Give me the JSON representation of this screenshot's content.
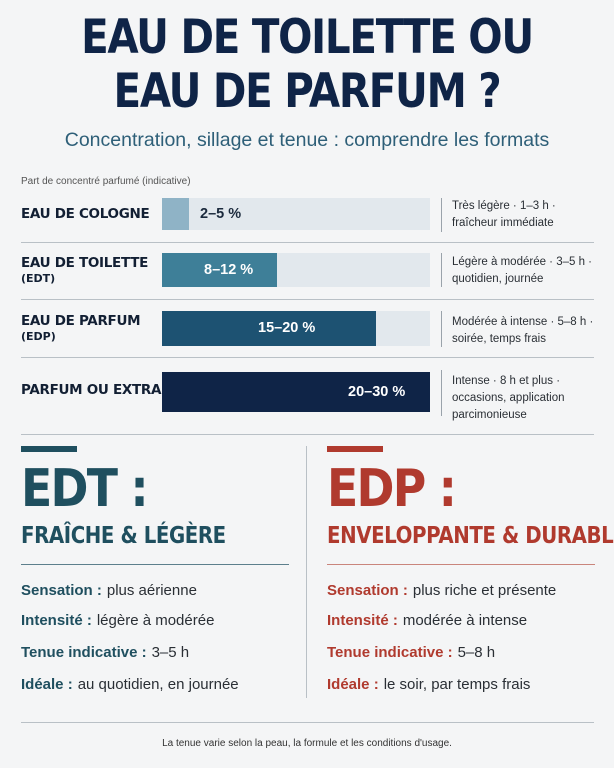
{
  "header": {
    "title_line1": "EAU DE TOILETTE OU",
    "title_line2": "EAU DE PARFUM ?",
    "subtitle": "Concentration, sillage et tenue : comprendre les formats"
  },
  "chart": {
    "caption": "Part de concentré parfumé (indicative)",
    "rows": [
      {
        "label": "EAU DE COLOGNE",
        "sub": "",
        "pct": "2–5 %",
        "level": 0.1,
        "color": "#8fb3c6",
        "note1": "Très légère · 1–3 h ·",
        "note2": "fraîcheur immédiate",
        "note3": ""
      },
      {
        "label": "EAU DE TOILETTE",
        "sub": "(EDT)",
        "pct": "8–12 %",
        "level": 0.43,
        "color": "#3e7f98",
        "note1": "Légère à modérée · 3–5 h ·",
        "note2": "quotidien, journée",
        "note3": ""
      },
      {
        "label": "EAU DE PARFUM",
        "sub": "(EDP)",
        "pct": "15–20 %",
        "level": 0.8,
        "color": "#1d5272",
        "note1": "Modérée à intense · 5–8 h ·",
        "note2": "soirée, temps frais",
        "note3": ""
      },
      {
        "label": "PARFUM OU EXTRAIT",
        "sub": "",
        "pct": "20–30 %",
        "level": 1.0,
        "color": "#0f2447",
        "note1": "Intense · 8 h et plus ·",
        "note2": "occasions, application",
        "note3": "parcimonieuse"
      }
    ]
  },
  "edt": {
    "title": "EDT :",
    "subtitle": "FRAÎCHE & LÉGÈRE",
    "color": "#1f4f5f",
    "props": [
      {
        "key": "Sensation :",
        "value": "plus aérienne"
      },
      {
        "key": "Intensité :",
        "value": "légère à modérée"
      },
      {
        "key": "Tenue indicative :",
        "value": "3–5 h"
      },
      {
        "key": "Idéale :",
        "value": "au quotidien, en journée"
      }
    ]
  },
  "edp": {
    "title": "EDP :",
    "subtitle": "ENVELOPPANTE & DURABLE",
    "color": "#b03a2e",
    "props": [
      {
        "key": "Sensation :",
        "value": "plus riche et présente"
      },
      {
        "key": "Intensité :",
        "value": "modérée à intense"
      },
      {
        "key": "Tenue indicative :",
        "value": "5–8 h"
      },
      {
        "key": "Idéale :",
        "value": "le soir, par temps frais"
      }
    ]
  },
  "footer": "La tenue varie selon la peau, la formule et les conditions d'usage."
}
